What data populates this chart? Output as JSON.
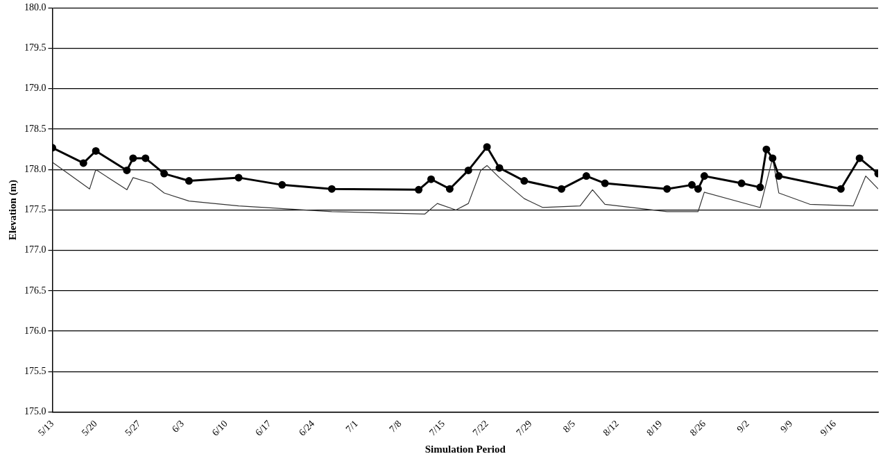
{
  "chart_data": {
    "type": "line",
    "xlabel": "Simulation Period",
    "ylabel": "Elevation (m)",
    "xlim": [
      "--05-13",
      "--09-23"
    ],
    "xticks": [
      {
        "value": "--05-13",
        "label": "5/13"
      },
      {
        "value": "--05-20",
        "label": "5/20"
      },
      {
        "value": "--05-27",
        "label": "5/27"
      },
      {
        "value": "--06-03",
        "label": "6/3"
      },
      {
        "value": "--06-10",
        "label": "6/10"
      },
      {
        "value": "--06-17",
        "label": "6/17"
      },
      {
        "value": "--06-24",
        "label": "6/24"
      },
      {
        "value": "--07-01",
        "label": "7/1"
      },
      {
        "value": "--07-08",
        "label": "7/8"
      },
      {
        "value": "--07-15",
        "label": "7/15"
      },
      {
        "value": "--07-22",
        "label": "7/22"
      },
      {
        "value": "--07-29",
        "label": "7/29"
      },
      {
        "value": "--08-05",
        "label": "8/5"
      },
      {
        "value": "--08-12",
        "label": "8/12"
      },
      {
        "value": "--08-19",
        "label": "8/19"
      },
      {
        "value": "--08-26",
        "label": "8/26"
      },
      {
        "value": "--09-02",
        "label": "9/2"
      },
      {
        "value": "--09-09",
        "label": "9/9"
      },
      {
        "value": "--09-16",
        "label": "9/16"
      }
    ],
    "ylim": [
      175,
      180
    ],
    "yticks": [
      {
        "value": 175,
        "label": "175.0"
      },
      {
        "value": 175.5,
        "label": "175.5"
      },
      {
        "value": 176,
        "label": "176.0"
      },
      {
        "value": 176.5,
        "label": "176.5"
      },
      {
        "value": 177,
        "label": "177.0"
      },
      {
        "value": 177.5,
        "label": "177.5"
      },
      {
        "value": 178,
        "label": "178.0"
      },
      {
        "value": 178.5,
        "label": "178.5"
      },
      {
        "value": 179,
        "label": "179.0"
      },
      {
        "value": 179.5,
        "label": "179.5"
      },
      {
        "value": 180,
        "label": "180.0"
      }
    ],
    "grid": "y",
    "line_style": "solid",
    "series": [
      {
        "color": "#000000",
        "marker": "circle",
        "x": [
          "--05-13",
          "--05-18",
          "--05-20",
          "--05-25",
          "--05-26",
          "--05-28",
          "--05-31",
          "--06-04",
          "--06-12",
          "--06-19",
          "--06-27",
          "--07-11",
          "--07-13",
          "--07-16",
          "--07-19",
          "--07-22",
          "--07-24",
          "--07-28",
          "--08-03",
          "--08-07",
          "--08-10",
          "--08-20",
          "--08-24",
          "--08-25",
          "--08-26",
          "--09-01",
          "--09-04",
          "--09-05",
          "--09-06",
          "--09-07",
          "--09-17",
          "--09-20",
          "--09-23"
        ],
        "values": [
          178.27,
          178.08,
          178.23,
          177.99,
          178.14,
          178.14,
          177.95,
          177.86,
          177.9,
          177.81,
          177.76,
          177.75,
          177.88,
          177.76,
          177.99,
          178.28,
          178.02,
          177.86,
          177.76,
          177.92,
          177.83,
          177.76,
          177.81,
          177.76,
          177.92,
          177.83,
          177.78,
          178.25,
          178.14,
          177.92,
          177.76,
          178.14,
          177.95
        ]
      },
      {
        "color": "#333333",
        "marker": "none",
        "x": [
          "--05-13",
          "--05-19",
          "--05-20",
          "--05-22",
          "--05-25",
          "--05-26",
          "--05-29",
          "--05-31",
          "--06-04",
          "--06-12",
          "--06-27",
          "--07-12",
          "--07-14",
          "--07-17",
          "--07-19",
          "--07-21",
          "--07-22",
          "--07-24",
          "--07-28",
          "--07-31",
          "--08-06",
          "--08-08",
          "--08-10",
          "--08-20",
          "--08-25",
          "--08-26",
          "--09-04",
          "--09-06",
          "--09-07",
          "--09-12",
          "--09-19",
          "--09-21",
          "--09-23"
        ],
        "values": [
          178.09,
          177.76,
          178.0,
          177.9,
          177.75,
          177.9,
          177.83,
          177.71,
          177.61,
          177.55,
          177.48,
          177.45,
          177.58,
          177.5,
          177.58,
          177.99,
          178.05,
          177.9,
          177.64,
          177.53,
          177.55,
          177.75,
          177.57,
          177.48,
          177.48,
          177.72,
          177.53,
          178.14,
          177.71,
          177.57,
          177.55,
          177.92,
          177.76
        ]
      }
    ]
  }
}
